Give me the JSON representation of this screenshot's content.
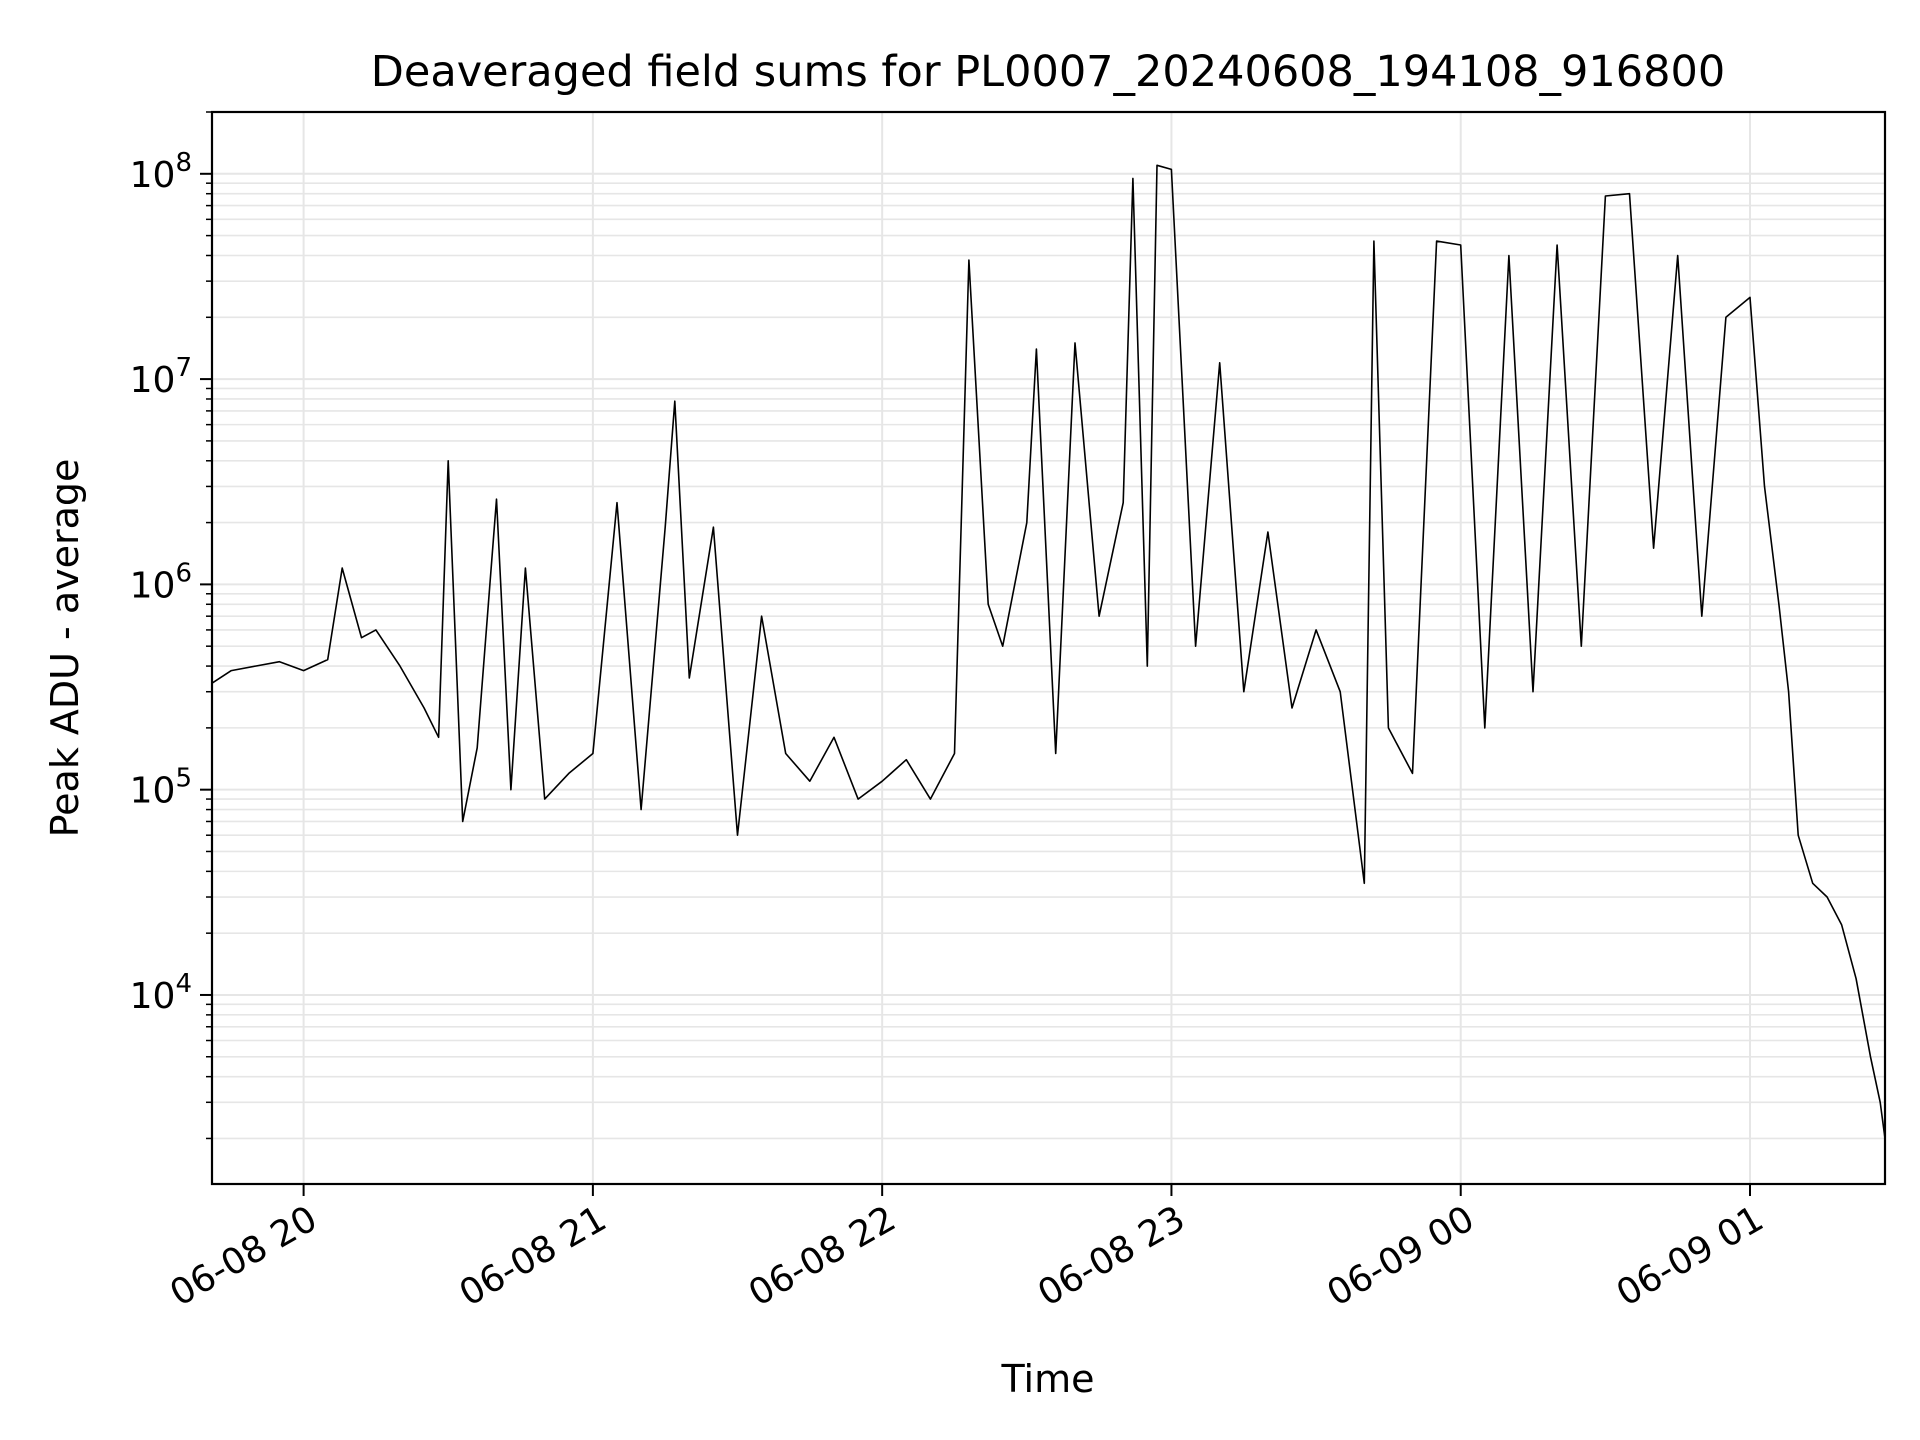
{
  "chart_data": {
    "type": "line",
    "title": "Deaveraged field sums for PL0007_20240608_194108_916800",
    "xlabel": "Time",
    "ylabel": "Peak ADU - average",
    "x_scale": "time",
    "y_scale": "log",
    "xlim": [
      "2024-06-08 19:41",
      "2024-06-09 01:28"
    ],
    "ylim": [
      1200,
      200000000
    ],
    "x_ticks": [
      {
        "t": "2024-06-08 20:00",
        "label": "06-08 20"
      },
      {
        "t": "2024-06-08 21:00",
        "label": "06-08 21"
      },
      {
        "t": "2024-06-08 22:00",
        "label": "06-08 22"
      },
      {
        "t": "2024-06-08 23:00",
        "label": "06-08 23"
      },
      {
        "t": "2024-06-09 00:00",
        "label": "06-09 00"
      },
      {
        "t": "2024-06-09 01:00",
        "label": "06-09 01"
      }
    ],
    "y_ticks": [
      {
        "value": 10000,
        "base": "10",
        "exp": "4"
      },
      {
        "value": 100000,
        "base": "10",
        "exp": "5"
      },
      {
        "value": 1000000,
        "base": "10",
        "exp": "6"
      },
      {
        "value": 10000000,
        "base": "10",
        "exp": "7"
      },
      {
        "value": 100000000,
        "base": "10",
        "exp": "8"
      }
    ],
    "grid": true,
    "line_color": "#000000",
    "grid_color": "#e6e6e6",
    "series": [
      {
        "points": [
          [
            "2024-06-08 19:41",
            330000
          ],
          [
            "2024-06-08 19:45",
            380000
          ],
          [
            "2024-06-08 19:50",
            400000
          ],
          [
            "2024-06-08 19:55",
            420000
          ],
          [
            "2024-06-08 20:00",
            380000
          ],
          [
            "2024-06-08 20:05",
            430000
          ],
          [
            "2024-06-08 20:08",
            1200000
          ],
          [
            "2024-06-08 20:12",
            550000
          ],
          [
            "2024-06-08 20:15",
            600000
          ],
          [
            "2024-06-08 20:20",
            400000
          ],
          [
            "2024-06-08 20:25",
            250000
          ],
          [
            "2024-06-08 20:28",
            180000
          ],
          [
            "2024-06-08 20:30",
            4000000
          ],
          [
            "2024-06-08 20:33",
            70000
          ],
          [
            "2024-06-08 20:36",
            160000
          ],
          [
            "2024-06-08 20:40",
            2600000
          ],
          [
            "2024-06-08 20:43",
            100000
          ],
          [
            "2024-06-08 20:46",
            1200000
          ],
          [
            "2024-06-08 20:50",
            90000
          ],
          [
            "2024-06-08 20:55",
            120000
          ],
          [
            "2024-06-08 21:00",
            150000
          ],
          [
            "2024-06-08 21:05",
            2500000
          ],
          [
            "2024-06-08 21:10",
            80000
          ],
          [
            "2024-06-08 21:15",
            1900000
          ],
          [
            "2024-06-08 21:17",
            7800000
          ],
          [
            "2024-06-08 21:20",
            350000
          ],
          [
            "2024-06-08 21:25",
            1900000
          ],
          [
            "2024-06-08 21:30",
            60000
          ],
          [
            "2024-06-08 21:35",
            700000
          ],
          [
            "2024-06-08 21:40",
            150000
          ],
          [
            "2024-06-08 21:45",
            110000
          ],
          [
            "2024-06-08 21:50",
            180000
          ],
          [
            "2024-06-08 21:55",
            90000
          ],
          [
            "2024-06-08 22:00",
            110000
          ],
          [
            "2024-06-08 22:05",
            140000
          ],
          [
            "2024-06-08 22:10",
            90000
          ],
          [
            "2024-06-08 22:15",
            150000
          ],
          [
            "2024-06-08 22:18",
            38000000
          ],
          [
            "2024-06-08 22:22",
            800000
          ],
          [
            "2024-06-08 22:25",
            500000
          ],
          [
            "2024-06-08 22:30",
            2000000
          ],
          [
            "2024-06-08 22:32",
            14000000
          ],
          [
            "2024-06-08 22:36",
            150000
          ],
          [
            "2024-06-08 22:40",
            15000000
          ],
          [
            "2024-06-08 22:45",
            700000
          ],
          [
            "2024-06-08 22:50",
            2500000
          ],
          [
            "2024-06-08 22:52",
            95000000
          ],
          [
            "2024-06-08 22:55",
            400000
          ],
          [
            "2024-06-08 22:57",
            110000000
          ],
          [
            "2024-06-08 23:00",
            105000000
          ],
          [
            "2024-06-08 23:05",
            500000
          ],
          [
            "2024-06-08 23:10",
            12000000
          ],
          [
            "2024-06-08 23:15",
            300000
          ],
          [
            "2024-06-08 23:20",
            1800000
          ],
          [
            "2024-06-08 23:25",
            250000
          ],
          [
            "2024-06-08 23:30",
            600000
          ],
          [
            "2024-06-08 23:35",
            300000
          ],
          [
            "2024-06-08 23:40",
            35000
          ],
          [
            "2024-06-08 23:42",
            47000000
          ],
          [
            "2024-06-08 23:45",
            200000
          ],
          [
            "2024-06-08 23:50",
            120000
          ],
          [
            "2024-06-08 23:55",
            47000000
          ],
          [
            "2024-06-09 00:00",
            45000000
          ],
          [
            "2024-06-09 00:05",
            200000
          ],
          [
            "2024-06-09 00:10",
            40000000
          ],
          [
            "2024-06-09 00:15",
            300000
          ],
          [
            "2024-06-09 00:20",
            45000000
          ],
          [
            "2024-06-09 00:25",
            500000
          ],
          [
            "2024-06-09 00:30",
            78000000
          ],
          [
            "2024-06-09 00:35",
            80000000
          ],
          [
            "2024-06-09 00:40",
            1500000
          ],
          [
            "2024-06-09 00:45",
            40000000
          ],
          [
            "2024-06-09 00:50",
            700000
          ],
          [
            "2024-06-09 00:55",
            20000000
          ],
          [
            "2024-06-09 01:00",
            25000000
          ],
          [
            "2024-06-09 01:03",
            3000000
          ],
          [
            "2024-06-09 01:06",
            800000
          ],
          [
            "2024-06-09 01:08",
            300000
          ],
          [
            "2024-06-09 01:10",
            60000
          ],
          [
            "2024-06-09 01:13",
            35000
          ],
          [
            "2024-06-09 01:16",
            30000
          ],
          [
            "2024-06-09 01:19",
            22000
          ],
          [
            "2024-06-09 01:22",
            12000
          ],
          [
            "2024-06-09 01:25",
            5000
          ],
          [
            "2024-06-09 01:27",
            3000
          ],
          [
            "2024-06-09 01:28",
            2000
          ]
        ]
      }
    ]
  }
}
